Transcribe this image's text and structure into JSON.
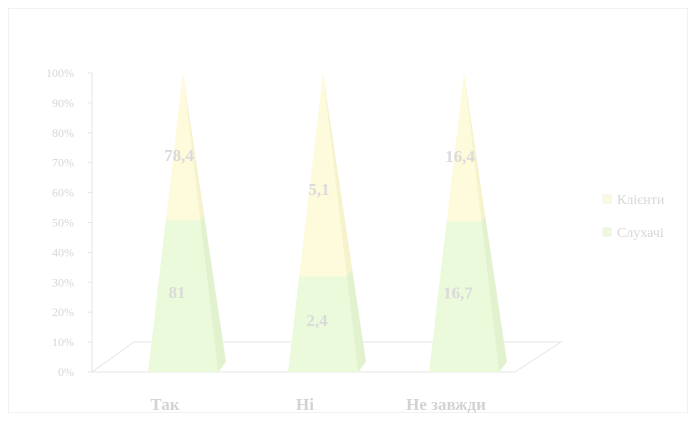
{
  "chart_data": {
    "type": "bar",
    "subtype": "stacked-100-percent-3d-pyramid",
    "categories": [
      "Так",
      "Ні",
      "Не завжди"
    ],
    "series": [
      {
        "name": "Слухачі",
        "values": [
          81,
          2.4,
          16.7
        ],
        "value_labels": [
          "81",
          "2,4",
          "16,7"
        ],
        "color": "#ecfadc"
      },
      {
        "name": "Клієнти",
        "values": [
          78.4,
          5.1,
          16.4
        ],
        "value_labels": [
          "78,4",
          "5,1",
          "16,4"
        ],
        "color": "#fdfbdc"
      }
    ],
    "y_ticks": [
      "0%",
      "10%",
      "20%",
      "30%",
      "40%",
      "50%",
      "60%",
      "70%",
      "80%",
      "90%",
      "100%"
    ],
    "ylim": [
      0,
      100
    ],
    "legend_position": "right",
    "grid": false,
    "title": "",
    "xlabel": "",
    "ylabel": ""
  }
}
